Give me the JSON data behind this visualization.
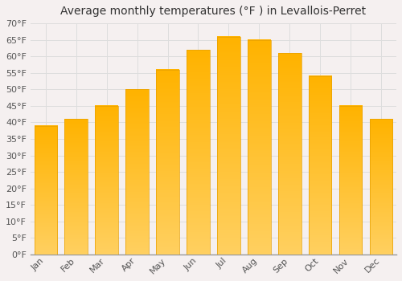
{
  "title": "Average monthly temperatures (°F ) in Levallois-Perret",
  "months": [
    "Jan",
    "Feb",
    "Mar",
    "Apr",
    "May",
    "Jun",
    "Jul",
    "Aug",
    "Sep",
    "Oct",
    "Nov",
    "Dec"
  ],
  "values": [
    39,
    41,
    45,
    50,
    56,
    62,
    66,
    65,
    61,
    54,
    45,
    41
  ],
  "bar_color_top": "#FFB300",
  "bar_color_bottom": "#FFD060",
  "bar_edge_color": "#E8A000",
  "background_color": "#F5F0F0",
  "plot_bg_color": "#F5F0F0",
  "ylim": [
    0,
    70
  ],
  "ytick_step": 5,
  "ylabel_suffix": "°F",
  "grid_color": "#DDDDDD",
  "title_fontsize": 10,
  "tick_fontsize": 8,
  "font_family": "DejaVu Sans"
}
